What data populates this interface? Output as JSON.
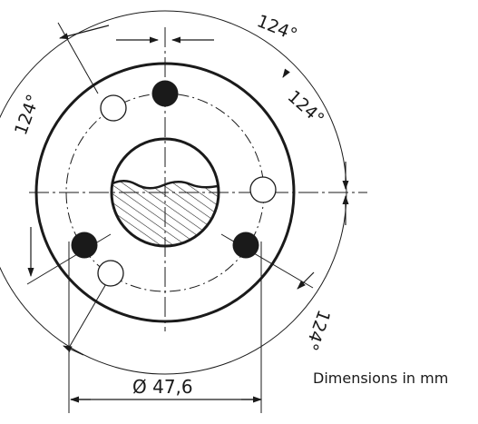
{
  "diagram": {
    "angle_labels": {
      "top": "124°",
      "left": "124°",
      "upper_right": "124°",
      "lower_right": "124°"
    },
    "diameter_label": "Ø 47,6",
    "units_note": "Dimensions in mm",
    "colors": {
      "line": "#1a1a1a",
      "background": "#ffffff"
    }
  }
}
